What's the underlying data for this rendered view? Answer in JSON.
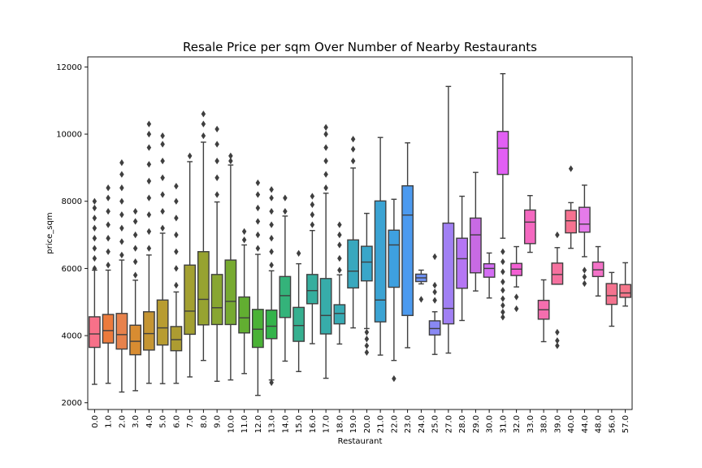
{
  "chart_data": {
    "type": "box",
    "title": "Resale Price per sqm Over Number of Nearby Restaurants",
    "xlabel": "Restaurant",
    "ylabel": "price_sqm",
    "ylim": [
      1800,
      12300
    ],
    "yticks": [
      2000,
      4000,
      6000,
      8000,
      10000,
      12000
    ],
    "grid": false,
    "legend": "none",
    "categories": [
      "0.0",
      "1.0",
      "2.0",
      "3.0",
      "4.0",
      "5.0",
      "6.0",
      "7.0",
      "8.0",
      "9.0",
      "10.0",
      "11.0",
      "12.0",
      "13.0",
      "14.0",
      "15.0",
      "16.0",
      "17.0",
      "18.0",
      "19.0",
      "20.0",
      "21.0",
      "22.0",
      "23.0",
      "24.0",
      "25.0",
      "27.0",
      "28.0",
      "29.0",
      "30.0",
      "31.0",
      "32.0",
      "33.0",
      "38.0",
      "39.0",
      "40.0",
      "44.0",
      "48.0",
      "56.0",
      "57.0"
    ],
    "colors": [
      "#f77189",
      "#ec7b3c",
      "#e7824c",
      "#d88c31",
      "#c59532",
      "#b89c31",
      "#ad9c31",
      "#a3a031",
      "#97a331",
      "#88a631",
      "#77aa31",
      "#62ae31",
      "#4ab236",
      "#33b44b",
      "#34b37a",
      "#36b090",
      "#36ae9e",
      "#37acaa",
      "#37abb4",
      "#38a8be",
      "#39a6c9",
      "#3ba3d3",
      "#3ea0e0",
      "#4c9aef",
      "#6f91f4",
      "#8988f4",
      "#a180f4",
      "#b576f4",
      "#c86ae4",
      "#d46df4",
      "#e25ff4",
      "#f35fd3",
      "#f468c0",
      "#f46eae",
      "#f5719f",
      "#f67290",
      "#e57bea",
      "#f472c8",
      "#f4738f",
      "#f4768a"
    ],
    "boxes": [
      {
        "whislo": 2550,
        "q1": 3650,
        "med": 4050,
        "q3": 4560,
        "whishi": 5950,
        "fliers_lo": [],
        "fliers_hi": [
          6000,
          6300,
          6600,
          6900,
          7200,
          7500,
          7800,
          8000
        ]
      },
      {
        "whislo": 2580,
        "q1": 3780,
        "med": 4150,
        "q3": 4630,
        "whishi": 5950,
        "fliers_lo": [],
        "fliers_hi": [
          6100,
          6500,
          6900,
          7300,
          7700,
          8100,
          8400
        ]
      },
      {
        "whislo": 2320,
        "q1": 3600,
        "med": 4030,
        "q3": 4660,
        "whishi": 6250,
        "fliers_lo": [],
        "fliers_hi": [
          6400,
          6800,
          7200,
          7600,
          8000,
          8400,
          8800,
          9150
        ]
      },
      {
        "whislo": 2360,
        "q1": 3430,
        "med": 3830,
        "q3": 4310,
        "whishi": 5650,
        "fliers_lo": [],
        "fliers_hi": [
          5800,
          6200,
          6600,
          7000,
          7400,
          7700
        ]
      },
      {
        "whislo": 2580,
        "q1": 3570,
        "med": 4060,
        "q3": 4710,
        "whishi": 6400,
        "fliers_lo": [],
        "fliers_hi": [
          6600,
          7100,
          7600,
          8100,
          8600,
          9100,
          9600,
          10000,
          10300
        ]
      },
      {
        "whislo": 2570,
        "q1": 3720,
        "med": 4230,
        "q3": 5060,
        "whishi": 7050,
        "fliers_lo": [],
        "fliers_hi": [
          7200,
          7700,
          8200,
          8700,
          9200,
          9700,
          9950
        ]
      },
      {
        "whislo": 2580,
        "q1": 3550,
        "med": 3880,
        "q3": 4270,
        "whishi": 5300,
        "fliers_lo": [],
        "fliers_hi": [
          5500,
          6000,
          6500,
          7000,
          7500,
          8000,
          8450
        ]
      },
      {
        "whislo": 2770,
        "q1": 4040,
        "med": 4730,
        "q3": 6100,
        "whishi": 9180,
        "fliers_lo": [],
        "fliers_hi": [
          9350
        ]
      },
      {
        "whislo": 3260,
        "q1": 4320,
        "med": 5080,
        "q3": 6500,
        "whishi": 9760,
        "fliers_lo": [],
        "fliers_hi": [
          9950,
          10300,
          10600
        ]
      },
      {
        "whislo": 2640,
        "q1": 4330,
        "med": 4830,
        "q3": 5820,
        "whishi": 7980,
        "fliers_lo": [],
        "fliers_hi": [
          8200,
          8700,
          9200,
          9700,
          10150
        ]
      },
      {
        "whislo": 2680,
        "q1": 4330,
        "med": 5020,
        "q3": 6250,
        "whishi": 9080,
        "fliers_lo": [],
        "fliers_hi": [
          9200,
          9350
        ]
      },
      {
        "whislo": 2870,
        "q1": 4080,
        "med": 4530,
        "q3": 5150,
        "whishi": 6700,
        "fliers_lo": [],
        "fliers_hi": [
          6850,
          7100
        ]
      },
      {
        "whislo": 2220,
        "q1": 3650,
        "med": 4190,
        "q3": 4780,
        "whishi": 6420,
        "fliers_lo": [],
        "fliers_hi": [
          6600,
          7000,
          7400,
          7800,
          8200,
          8550
        ]
      },
      {
        "whislo": 2680,
        "q1": 3910,
        "med": 4280,
        "q3": 4760,
        "whishi": 5930,
        "fliers_lo": [
          2600
        ],
        "fliers_hi": [
          6100,
          6500,
          6900,
          7300,
          7700,
          8100,
          8350
        ]
      },
      {
        "whislo": 3240,
        "q1": 4540,
        "med": 5190,
        "q3": 5760,
        "whishi": 7560,
        "fliers_lo": [],
        "fliers_hi": [
          7700,
          8100
        ]
      },
      {
        "whislo": 2930,
        "q1": 3830,
        "med": 4300,
        "q3": 4840,
        "whishi": 6140,
        "fliers_lo": [],
        "fliers_hi": [
          6450
        ]
      },
      {
        "whislo": 3760,
        "q1": 4950,
        "med": 5340,
        "q3": 5820,
        "whishi": 7130,
        "fliers_lo": [],
        "fliers_hi": [
          7300,
          7600,
          7900,
          8150
        ]
      },
      {
        "whislo": 2730,
        "q1": 4050,
        "med": 4600,
        "q3": 5700,
        "whishi": 8240,
        "fliers_lo": [],
        "fliers_hi": [
          8400,
          8800,
          9200,
          9600,
          10000,
          10200
        ]
      },
      {
        "whislo": 3750,
        "q1": 4350,
        "med": 4660,
        "q3": 4920,
        "whishi": 5810,
        "fliers_lo": [],
        "fliers_hi": [
          5950,
          6300,
          6700,
          7000,
          7300
        ]
      },
      {
        "whislo": 4230,
        "q1": 5420,
        "med": 5920,
        "q3": 6850,
        "whishi": 8990,
        "fliers_lo": [],
        "fliers_hi": [
          9200,
          9550,
          9850
        ]
      },
      {
        "whislo": 4210,
        "q1": 5630,
        "med": 6190,
        "q3": 6660,
        "whishi": 7640,
        "fliers_lo": [
          3500,
          3700,
          3900,
          4100
        ],
        "fliers_hi": []
      },
      {
        "whislo": 3420,
        "q1": 4410,
        "med": 5060,
        "q3": 8010,
        "whishi": 9900,
        "fliers_lo": [],
        "fliers_hi": []
      },
      {
        "whislo": 3260,
        "q1": 5440,
        "med": 6700,
        "q3": 7140,
        "whishi": 8060,
        "fliers_lo": [
          2720
        ],
        "fliers_hi": []
      },
      {
        "whislo": 3640,
        "q1": 4600,
        "med": 7590,
        "q3": 8460,
        "whishi": 9740,
        "fliers_lo": [],
        "fliers_hi": []
      },
      {
        "whislo": 5540,
        "q1": 5610,
        "med": 5720,
        "q3": 5830,
        "whishi": 5950,
        "fliers_lo": [
          5080
        ],
        "fliers_hi": []
      },
      {
        "whislo": 3440,
        "q1": 4020,
        "med": 4210,
        "q3": 4440,
        "whishi": 4710,
        "fliers_lo": [],
        "fliers_hi": [
          5050,
          5300,
          5500,
          6350
        ]
      },
      {
        "whislo": 3480,
        "q1": 4350,
        "med": 4810,
        "q3": 7350,
        "whishi": 11420,
        "fliers_lo": [],
        "fliers_hi": []
      },
      {
        "whislo": 4450,
        "q1": 5410,
        "med": 6290,
        "q3": 6900,
        "whishi": 8150,
        "fliers_lo": [],
        "fliers_hi": []
      },
      {
        "whislo": 5330,
        "q1": 5870,
        "med": 7000,
        "q3": 7500,
        "whishi": 8860,
        "fliers_lo": [],
        "fliers_hi": []
      },
      {
        "whislo": 5120,
        "q1": 5740,
        "med": 6000,
        "q3": 6140,
        "whishi": 6460,
        "fliers_lo": [],
        "fliers_hi": []
      },
      {
        "whislo": 6900,
        "q1": 8800,
        "med": 9580,
        "q3": 10080,
        "whishi": 11800,
        "fliers_lo": [
          4550,
          4700,
          4900,
          5100,
          5350,
          5600,
          5900,
          6200,
          6500
        ],
        "fliers_hi": []
      },
      {
        "whislo": 5450,
        "q1": 5790,
        "med": 5980,
        "q3": 6150,
        "whishi": 6650,
        "fliers_lo": [
          4800,
          5150
        ],
        "fliers_hi": []
      },
      {
        "whislo": 6480,
        "q1": 6740,
        "med": 7380,
        "q3": 7740,
        "whishi": 8170,
        "fliers_lo": [],
        "fliers_hi": []
      },
      {
        "whislo": 3820,
        "q1": 4490,
        "med": 4770,
        "q3": 5050,
        "whishi": 5660,
        "fliers_lo": [],
        "fliers_hi": []
      },
      {
        "whislo": 5530,
        "q1": 5530,
        "med": 5820,
        "q3": 6160,
        "whishi": 6620,
        "fliers_lo": [
          3700,
          3850,
          4100
        ],
        "fliers_hi": [
          7000
        ]
      },
      {
        "whislo": 6600,
        "q1": 7060,
        "med": 7420,
        "q3": 7730,
        "whishi": 7960,
        "fliers_lo": [],
        "fliers_hi": [
          8970
        ]
      },
      {
        "whislo": 6350,
        "q1": 7080,
        "med": 7320,
        "q3": 7820,
        "whishi": 8480,
        "fliers_lo": [
          5550,
          5750,
          5950
        ],
        "fliers_hi": []
      },
      {
        "whislo": 5180,
        "q1": 5760,
        "med": 5960,
        "q3": 6190,
        "whishi": 6650,
        "fliers_lo": [],
        "fliers_hi": []
      },
      {
        "whislo": 4280,
        "q1": 4930,
        "med": 5190,
        "q3": 5550,
        "whishi": 5880,
        "fliers_lo": [],
        "fliers_hi": []
      },
      {
        "whislo": 4880,
        "q1": 5140,
        "med": 5270,
        "q3": 5520,
        "whishi": 6170,
        "fliers_lo": [],
        "fliers_hi": []
      }
    ]
  }
}
